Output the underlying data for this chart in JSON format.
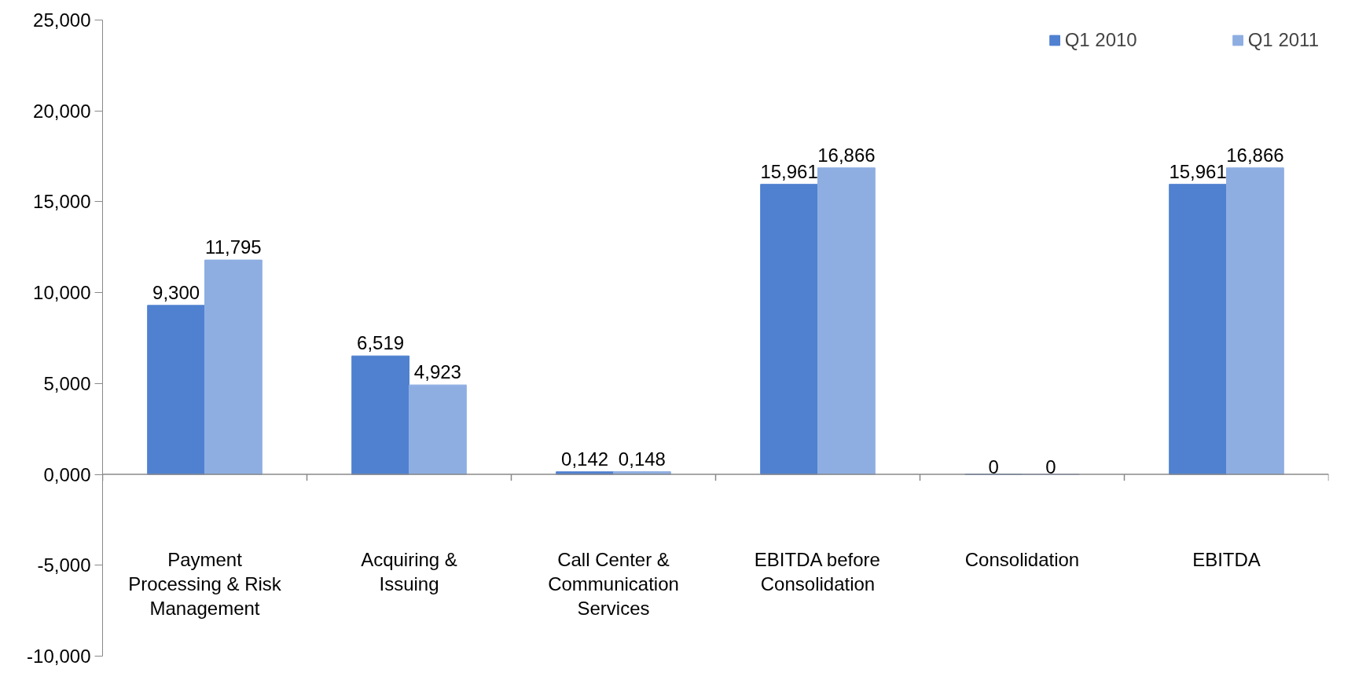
{
  "chart_data": {
    "type": "bar",
    "categories": [
      "Payment Processing & Risk Management",
      "Acquiring & Issuing",
      "Call Center & Communication Services",
      "EBITDA before Consolidation",
      "Consolidation",
      "EBITDA"
    ],
    "series": [
      {
        "name": "Q1 2010",
        "color": "#4f81d0",
        "values": [
          9.3,
          6.519,
          0.142,
          15.961,
          0,
          15.961
        ],
        "value_labels": [
          "9,300",
          "6,519",
          "0,142",
          "15,961",
          "0",
          "15,961"
        ]
      },
      {
        "name": "Q1 2011",
        "color": "#8eaee2",
        "values": [
          11.795,
          4.923,
          0.148,
          16.866,
          0,
          16.866
        ],
        "value_labels": [
          "11,795",
          "4,923",
          "0,148",
          "16,866",
          "0",
          "16,866"
        ]
      }
    ],
    "ylim": [
      -10,
      25
    ],
    "yticks": [
      {
        "value": -10,
        "label": "-10,000"
      },
      {
        "value": -5,
        "label": "-5,000"
      },
      {
        "value": 0,
        "label": "0,000"
      },
      {
        "value": 5,
        "label": "5,000"
      },
      {
        "value": 10,
        "label": "10,000"
      },
      {
        "value": 15,
        "label": "15,000"
      },
      {
        "value": 20,
        "label": "20,000"
      },
      {
        "value": 25,
        "label": "25,000"
      }
    ],
    "legend": "top right"
  }
}
